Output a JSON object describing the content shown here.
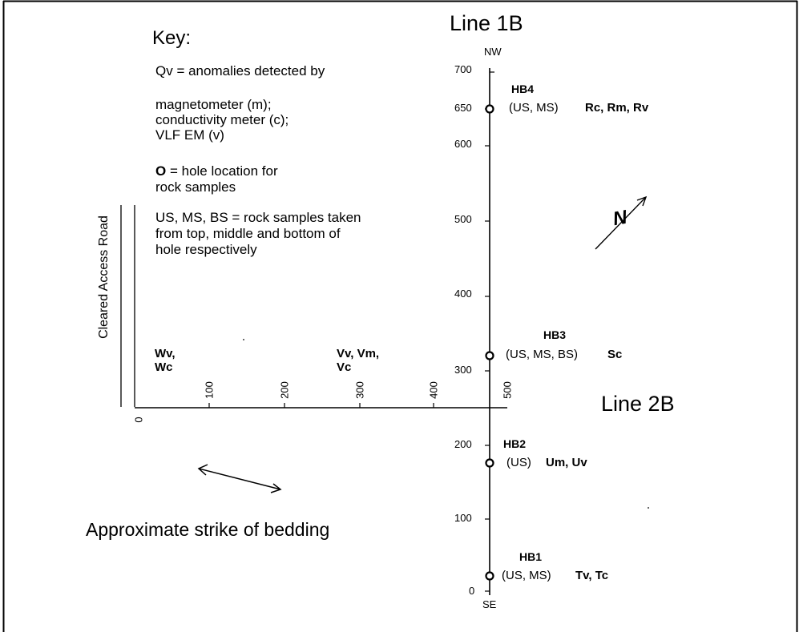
{
  "key": {
    "title": "Key:",
    "qv_line": "Qv = anomalies detected by",
    "instruments": [
      "magnetometer (m);",
      "conductivity meter (c);",
      "VLF EM (v)"
    ],
    "hole_symbol": "O",
    "hole_text_1": " = hole location for",
    "hole_text_2": "rock samples",
    "samples_lines": [
      "US, MS, BS = rock samples taken",
      "from top, middle and bottom of",
      "hole respectively"
    ]
  },
  "road_label": "Cleared Access Road",
  "line1b": {
    "title": "Line 1B",
    "top_label": "NW",
    "bottom_label": "SE",
    "ticks": [
      "700",
      "650",
      "600",
      "500",
      "400",
      "300",
      "200",
      "100",
      "0"
    ]
  },
  "line2b": {
    "title": "Line 2B",
    "ticks": [
      "0",
      "100",
      "200",
      "300",
      "400",
      "500"
    ]
  },
  "holes": [
    {
      "name": "HB4",
      "samples": "(US, MS)",
      "anomalies": "Rc, Rm, Rv",
      "position_m": 650
    },
    {
      "name": "HB3",
      "samples": "(US, MS, BS)",
      "anomalies": "Sc",
      "position_m": 320
    },
    {
      "name": "HB2",
      "samples": "(US)",
      "anomalies": "Um, Uv",
      "position_m": 170
    },
    {
      "name": "HB1",
      "samples": "(US, MS)",
      "anomalies": "Tv, Tc",
      "position_m": 20
    }
  ],
  "line2b_anomalies": [
    {
      "line1": "Wv,",
      "line2": "Wc"
    },
    {
      "line1": "Vv, Vm,",
      "line2": "Vc"
    }
  ],
  "north_symbol": "N",
  "strike_label": "Approximate strike of bedding"
}
